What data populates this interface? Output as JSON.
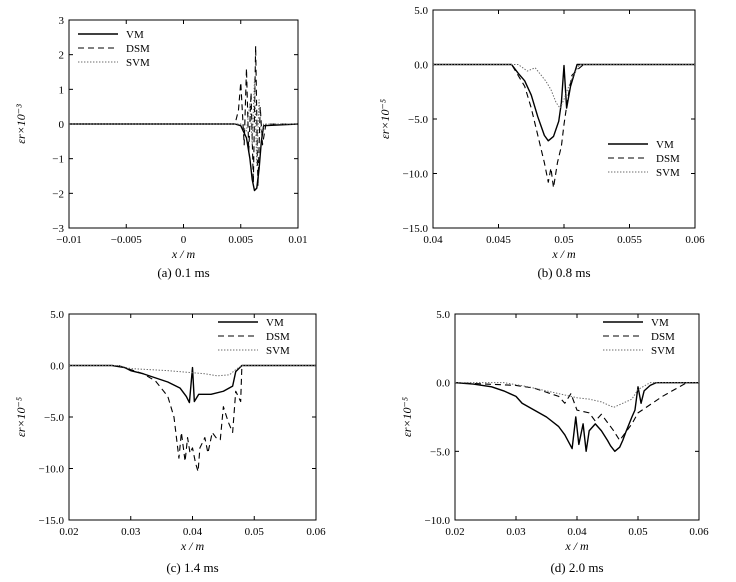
{
  "chart_data": [
    {
      "type": "line",
      "caption": "(a) 0.1 ms",
      "xlabel": "x / m",
      "ylabel": "εr×10⁻³",
      "xlim": [
        -0.01,
        0.01
      ],
      "ylim": [
        -3,
        3
      ],
      "xticks": [
        -0.01,
        -0.005,
        0,
        0.005,
        0.01
      ],
      "xtick_labels": [
        "−0.01",
        "−0.005",
        "0",
        "0.005",
        "0.01"
      ],
      "yticks": [
        -3,
        -2,
        -1,
        0,
        1,
        2,
        3
      ],
      "ytick_labels": [
        "−3",
        "−2",
        "−1",
        "0",
        "1",
        "2",
        "3"
      ],
      "grid": false,
      "legend": "top-left",
      "series": [
        {
          "name": "VM",
          "style": "solid",
          "x": [
            -0.01,
            0.0045,
            0.005,
            0.0055,
            0.0058,
            0.006,
            0.0062,
            0.0064,
            0.0066,
            0.0068,
            0.007,
            0.01
          ],
          "y": [
            0,
            0,
            -0.05,
            -0.4,
            -1.0,
            -1.6,
            -1.92,
            -1.85,
            -1.3,
            -0.5,
            -0.05,
            0
          ]
        },
        {
          "name": "DSM",
          "style": "dashed",
          "x": [
            -0.01,
            0.0045,
            0.0048,
            0.005,
            0.0053,
            0.0055,
            0.0057,
            0.0059,
            0.0061,
            0.0063,
            0.0065,
            0.0067,
            0.0069,
            0.0072,
            0.01
          ],
          "y": [
            0,
            0,
            0.4,
            1.2,
            -0.6,
            1.6,
            -0.8,
            0.9,
            -1.7,
            2.25,
            -1.8,
            0.5,
            -0.6,
            0,
            0
          ]
        },
        {
          "name": "SVM",
          "style": "dotted",
          "x": [
            -0.01,
            0.005,
            0.0055,
            0.0058,
            0.006,
            0.0062,
            0.0064,
            0.0066,
            0.0068,
            0.007,
            0.01
          ],
          "y": [
            0,
            0,
            -0.2,
            0.6,
            -0.6,
            1.3,
            -1.2,
            0.7,
            -0.3,
            0,
            0
          ]
        }
      ]
    },
    {
      "type": "line",
      "caption": "(b) 0.8 ms",
      "xlabel": "x / m",
      "ylabel": "εr×10⁻⁵",
      "xlim": [
        0.04,
        0.06
      ],
      "ylim": [
        -15,
        5
      ],
      "xticks": [
        0.04,
        0.045,
        0.05,
        0.055,
        0.06
      ],
      "xtick_labels": [
        "0.04",
        "0.045",
        "0.05",
        "0.055",
        "0.06"
      ],
      "yticks": [
        -15,
        -10,
        -5,
        0,
        5
      ],
      "ytick_labels": [
        "−15.0",
        "−10.0",
        "−5.0",
        "0.0",
        "5.0"
      ],
      "grid": false,
      "legend": "bottom-right",
      "series": [
        {
          "name": "VM",
          "style": "solid",
          "x": [
            0.04,
            0.046,
            0.0465,
            0.047,
            0.0475,
            0.048,
            0.0485,
            0.0488,
            0.0492,
            0.0496,
            0.0498,
            0.05,
            0.0502,
            0.0505,
            0.051,
            0.06
          ],
          "y": [
            0,
            0,
            -0.8,
            -1.5,
            -2.8,
            -4.8,
            -6.5,
            -7.0,
            -6.6,
            -5.2,
            -3.5,
            -0.1,
            -4.0,
            -2.0,
            0,
            0
          ]
        },
        {
          "name": "DSM",
          "style": "dashed",
          "x": [
            0.04,
            0.046,
            0.047,
            0.0475,
            0.048,
            0.0485,
            0.0488,
            0.049,
            0.0492,
            0.0495,
            0.0498,
            0.05,
            0.0503,
            0.0506,
            0.051,
            0.0515,
            0.06
          ],
          "y": [
            0,
            0,
            -2.0,
            -4.0,
            -6.5,
            -9.0,
            -10.8,
            -9.5,
            -11.3,
            -9.0,
            -7.5,
            -5.5,
            -3.0,
            -1.0,
            -0.5,
            0,
            0
          ]
        },
        {
          "name": "SVM",
          "style": "dotted",
          "x": [
            0.04,
            0.0465,
            0.0472,
            0.0478,
            0.0482,
            0.0486,
            0.049,
            0.0494,
            0.0497,
            0.05,
            0.0503,
            0.0507,
            0.0512,
            0.06
          ],
          "y": [
            0,
            0,
            -0.6,
            -0.3,
            -0.9,
            -1.5,
            -2.3,
            -3.5,
            -4.0,
            -3.2,
            -2.2,
            -1.0,
            0,
            0
          ]
        }
      ]
    },
    {
      "type": "line",
      "caption": "(c) 1.4 ms",
      "xlabel": "x / m",
      "ylabel": "εr×10⁻⁵",
      "xlim": [
        0.02,
        0.06
      ],
      "ylim": [
        -15,
        5
      ],
      "xticks": [
        0.02,
        0.03,
        0.04,
        0.05,
        0.06
      ],
      "xtick_labels": [
        "0.02",
        "0.03",
        "0.04",
        "0.05",
        "0.06"
      ],
      "yticks": [
        -15,
        -10,
        -5,
        0,
        5
      ],
      "ytick_labels": [
        "−15.0",
        "−10.0",
        "−5.0",
        "0.0",
        "5.0"
      ],
      "grid": false,
      "legend": "top-right",
      "series": [
        {
          "name": "VM",
          "style": "solid",
          "x": [
            0.02,
            0.027,
            0.029,
            0.03,
            0.032,
            0.034,
            0.036,
            0.038,
            0.039,
            0.0395,
            0.04,
            0.0403,
            0.041,
            0.043,
            0.045,
            0.0465,
            0.047,
            0.048,
            0.06
          ],
          "y": [
            0,
            0,
            -0.2,
            -0.5,
            -0.8,
            -1.2,
            -1.6,
            -2.2,
            -3.0,
            -3.6,
            -0.2,
            -3.5,
            -2.8,
            -2.8,
            -2.5,
            -2.0,
            -0.6,
            0,
            0
          ]
        },
        {
          "name": "DSM",
          "style": "dashed",
          "x": [
            0.02,
            0.028,
            0.03,
            0.032,
            0.034,
            0.036,
            0.037,
            0.0378,
            0.0382,
            0.0388,
            0.0392,
            0.0396,
            0.04,
            0.0405,
            0.0409,
            0.0412,
            0.042,
            0.0425,
            0.0432,
            0.0438,
            0.0445,
            0.045,
            0.0458,
            0.0465,
            0.047,
            0.0478,
            0.048,
            0.06
          ],
          "y": [
            0,
            0,
            -0.4,
            -0.8,
            -1.5,
            -3.0,
            -5.0,
            -9.0,
            -6.5,
            -9.3,
            -7.0,
            -8.5,
            -8.0,
            -9.5,
            -10.3,
            -8.0,
            -7.0,
            -8.5,
            -6.5,
            -7.0,
            -7.2,
            -4.0,
            -5.5,
            -6.5,
            -2.5,
            -3.5,
            0,
            0
          ]
        },
        {
          "name": "SVM",
          "style": "dotted",
          "x": [
            0.02,
            0.028,
            0.03,
            0.033,
            0.036,
            0.038,
            0.04,
            0.042,
            0.044,
            0.046,
            0.047,
            0.048,
            0.06
          ],
          "y": [
            0,
            0,
            -0.3,
            -0.4,
            -0.5,
            -0.6,
            -0.7,
            -0.8,
            -1.0,
            -0.9,
            -0.4,
            0,
            0
          ]
        }
      ]
    },
    {
      "type": "line",
      "caption": "(d) 2.0 ms",
      "xlabel": "x / m",
      "ylabel": "εr×10⁻⁵",
      "xlim": [
        0.02,
        0.06
      ],
      "ylim": [
        -10,
        5
      ],
      "xticks": [
        0.02,
        0.03,
        0.04,
        0.05,
        0.06
      ],
      "xtick_labels": [
        "0.02",
        "0.03",
        "0.04",
        "0.05",
        "0.06"
      ],
      "yticks": [
        -10,
        -5,
        0,
        5
      ],
      "ytick_labels": [
        "−10.0",
        "−5.0",
        "0.0",
        "5.0"
      ],
      "grid": false,
      "legend": "top-right",
      "series": [
        {
          "name": "VM",
          "style": "solid",
          "x": [
            0.02,
            0.023,
            0.026,
            0.028,
            0.03,
            0.031,
            0.033,
            0.035,
            0.037,
            0.038,
            0.0392,
            0.0398,
            0.0403,
            0.041,
            0.0415,
            0.042,
            0.043,
            0.044,
            0.045,
            0.0455,
            0.0462,
            0.047,
            0.0475,
            0.048,
            0.049,
            0.0495,
            0.05,
            0.0505,
            0.051,
            0.052,
            0.053,
            0.06
          ],
          "y": [
            0,
            -0.1,
            -0.3,
            -0.6,
            -1.0,
            -1.5,
            -2.0,
            -2.5,
            -3.2,
            -3.8,
            -4.8,
            -2.5,
            -4.5,
            -3.0,
            -5.0,
            -3.5,
            -3.0,
            -3.5,
            -4.2,
            -4.6,
            -5.0,
            -4.7,
            -4.2,
            -3.6,
            -2.5,
            -2.0,
            -0.3,
            -1.5,
            -0.6,
            -0.2,
            0,
            0
          ]
        },
        {
          "name": "DSM",
          "style": "dashed",
          "x": [
            0.02,
            0.025,
            0.03,
            0.033,
            0.035,
            0.037,
            0.038,
            0.039,
            0.04,
            0.042,
            0.043,
            0.044,
            0.045,
            0.046,
            0.047,
            0.048,
            0.049,
            0.05,
            0.052,
            0.054,
            0.056,
            0.058,
            0.06
          ],
          "y": [
            0,
            -0.1,
            -0.2,
            -0.4,
            -0.7,
            -1.0,
            -1.5,
            -0.8,
            -2.0,
            -2.2,
            -2.8,
            -2.3,
            -2.9,
            -3.5,
            -4.2,
            -3.6,
            -3.0,
            -2.2,
            -1.6,
            -1.0,
            -0.5,
            0,
            0
          ]
        },
        {
          "name": "SVM",
          "style": "dotted",
          "x": [
            0.02,
            0.028,
            0.032,
            0.035,
            0.038,
            0.04,
            0.042,
            0.044,
            0.046,
            0.0475,
            0.049,
            0.05,
            0.052,
            0.06
          ],
          "y": [
            0,
            0,
            -0.3,
            -0.6,
            -0.9,
            -1.1,
            -1.2,
            -1.4,
            -1.8,
            -1.5,
            -1.2,
            -0.5,
            0,
            0
          ]
        }
      ]
    }
  ]
}
